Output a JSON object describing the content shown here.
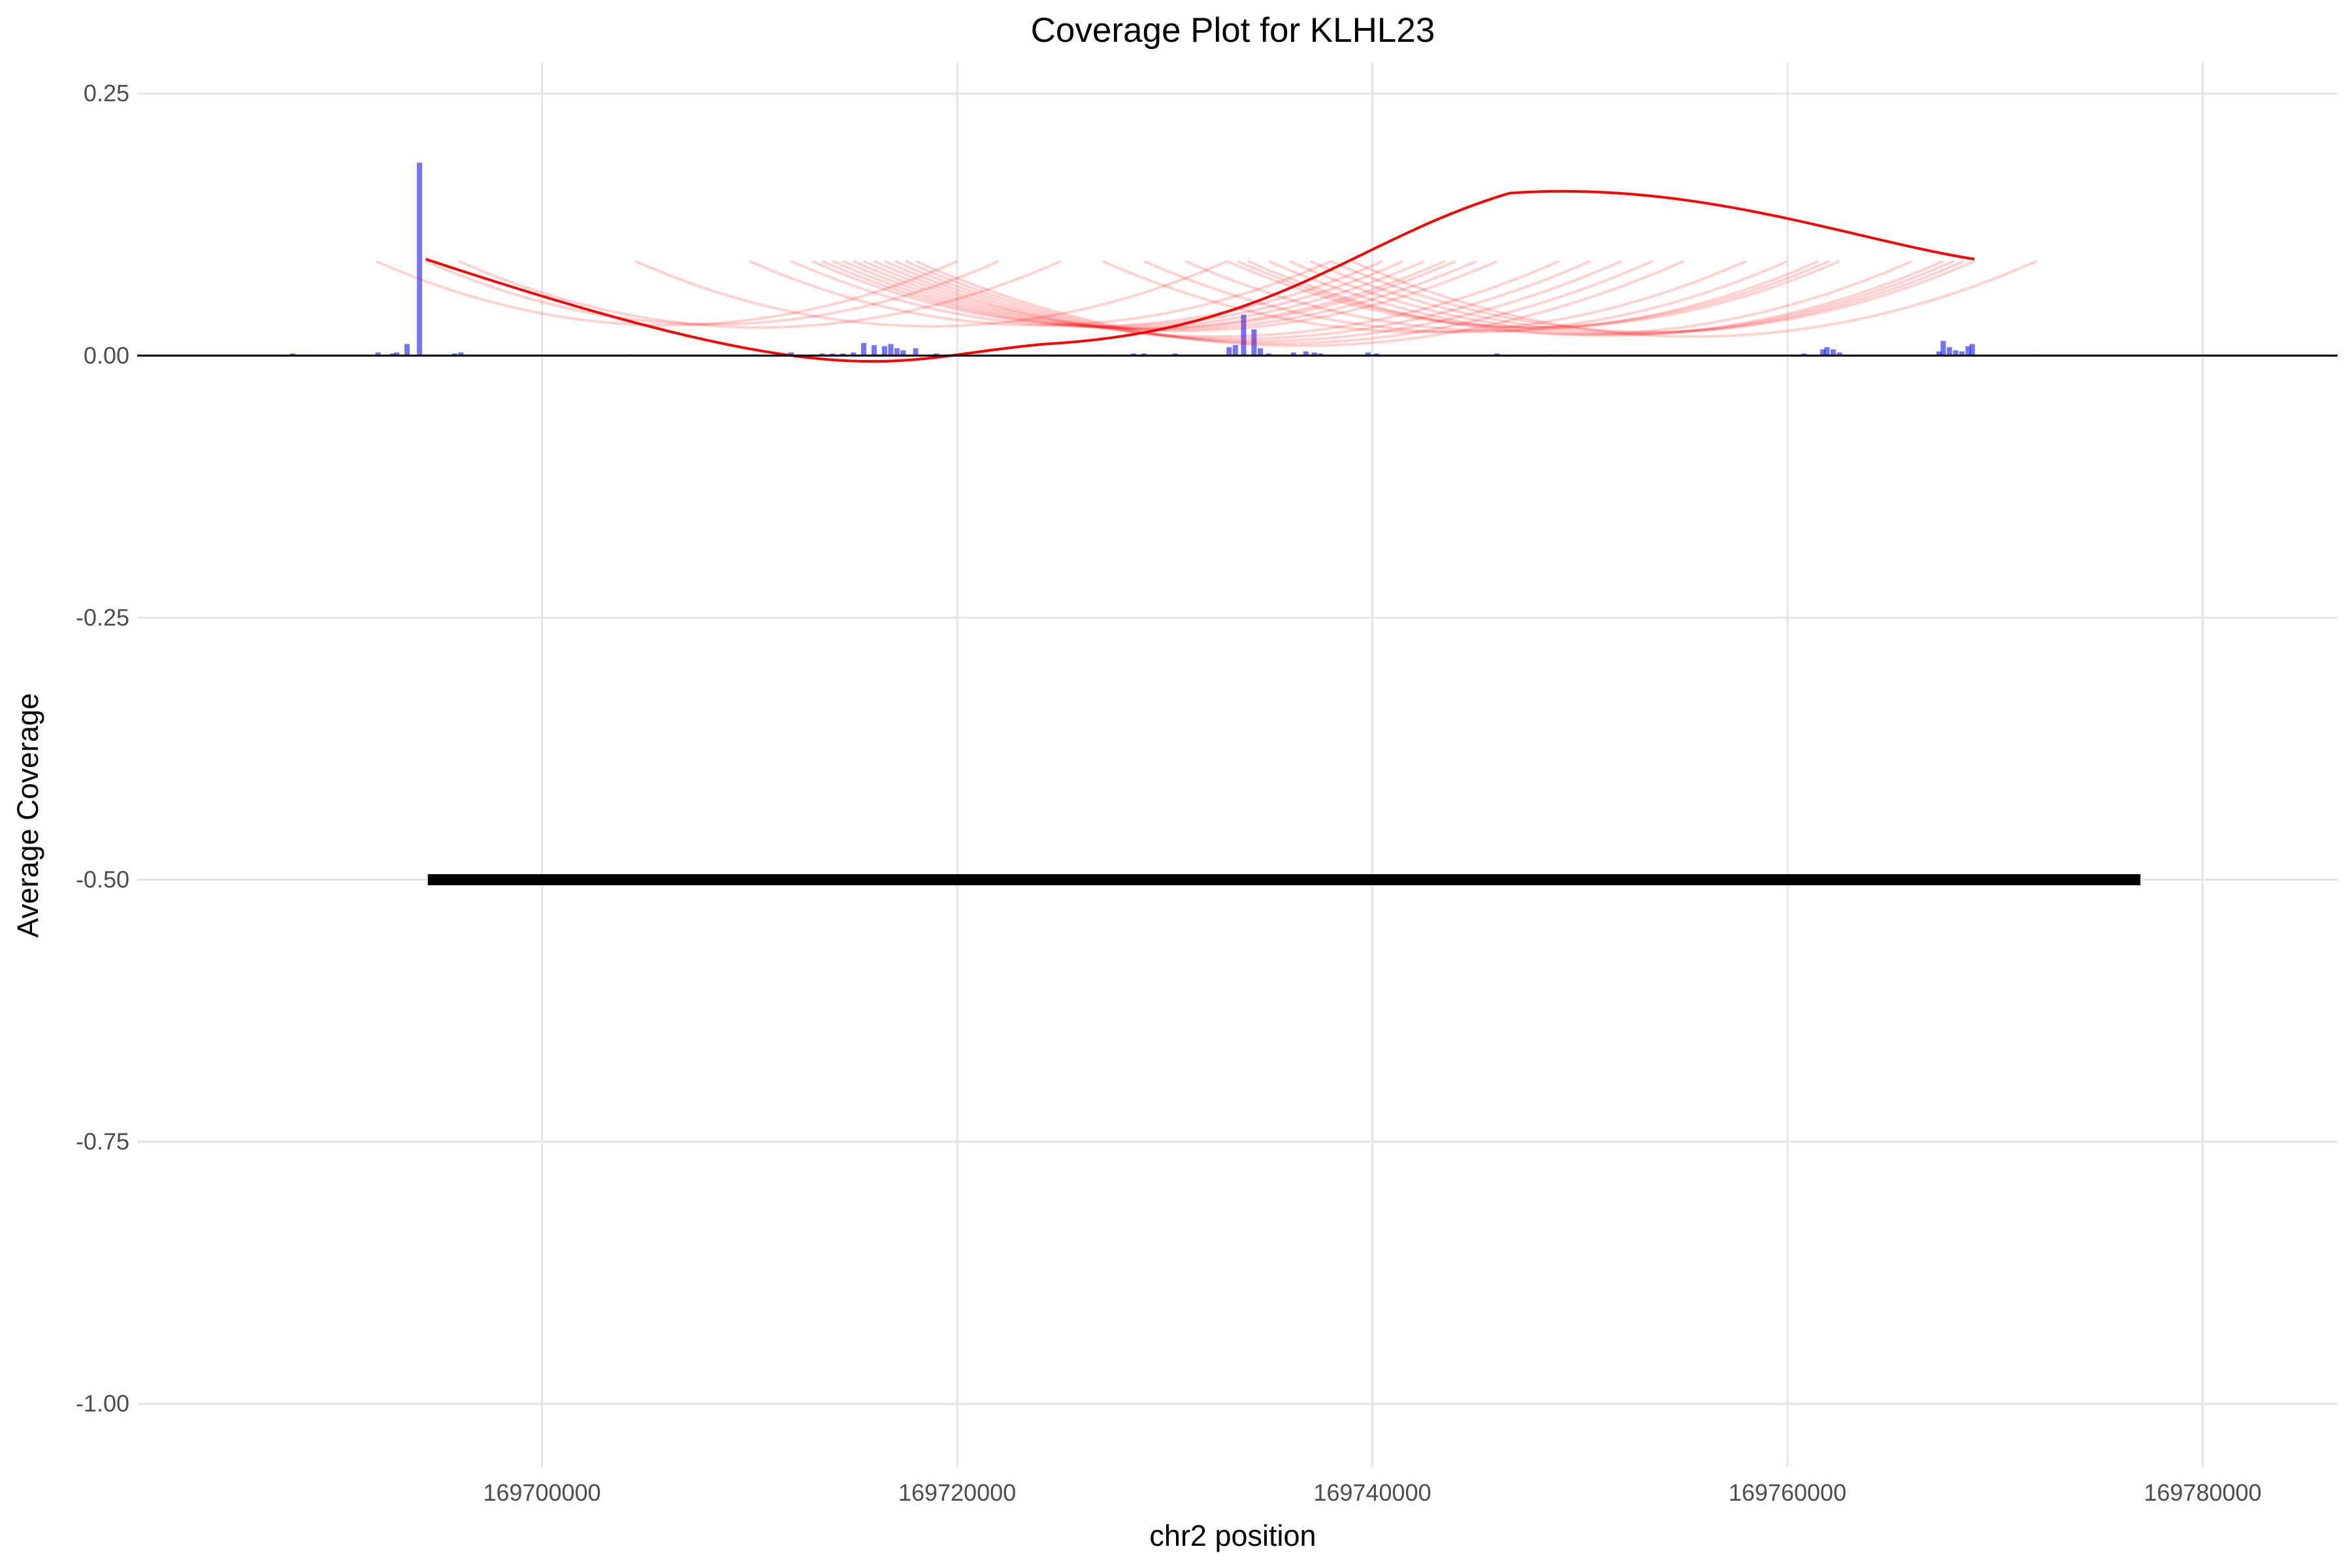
{
  "chart_data": {
    "type": "bar",
    "title": "Coverage Plot for KLHL23",
    "xlabel": "chr2 position",
    "ylabel": "Average Coverage",
    "xlim": [
      169680500,
      169786500
    ],
    "ylim": [
      -1.06,
      0.28
    ],
    "x_ticks": [
      169700000,
      169720000,
      169740000,
      169760000,
      169780000
    ],
    "x_tick_labels": [
      "169700000",
      "169720000",
      "169740000",
      "169760000",
      "169780000"
    ],
    "y_ticks": [
      0.25,
      0,
      -0.25,
      -0.5,
      -0.75,
      -1
    ],
    "y_tick_labels": [
      "0.25",
      "0.00",
      "-0.25",
      "-0.50",
      "-0.75",
      "-1.00"
    ],
    "grid": true,
    "legend": "none",
    "colors": {
      "coverage": "#0000ff",
      "junction": "#ff0000",
      "gene_model": "#000000",
      "baseline": "#000000",
      "grid": "#e5e5e5"
    },
    "series": [
      {
        "kind": "coverage_bars",
        "x": [
          169688000,
          169692100,
          169692800,
          169693000,
          169693500,
          169694100,
          169695800,
          169696100,
          169704200,
          169710200,
          169712000,
          169713000,
          169713500,
          169714000,
          169714500,
          169715000,
          169715500,
          169716000,
          169716500,
          169716800,
          169717100,
          169717400,
          169718000,
          169719000,
          169727000,
          169728500,
          169729000,
          169730500,
          169733100,
          169733400,
          169733800,
          169734300,
          169734600,
          169735000,
          169736200,
          169736800,
          169737200,
          169737500,
          169739800,
          169740200,
          169746000,
          169748500,
          169749000,
          169757500,
          169760800,
          169761700,
          169761900,
          169762200,
          169762500,
          169767300,
          169767500,
          169767800,
          169768100,
          169768400,
          169768700,
          169768900,
          169772000
        ],
        "y": [
          0.002,
          0.003,
          0.002,
          0.003,
          0.011,
          0.184,
          0.002,
          0.003,
          0.001,
          0.001,
          0.003,
          0.001,
          0.002,
          0.002,
          0.002,
          0.003,
          0.012,
          0.01,
          0.009,
          0.011,
          0.007,
          0.005,
          0.007,
          0.002,
          0.001,
          0.002,
          0.002,
          0.002,
          0.008,
          0.01,
          0.039,
          0.025,
          0.007,
          0.002,
          0.003,
          0.004,
          0.003,
          0.002,
          0.003,
          0.002,
          0.002,
          0.001,
          0.001,
          0.001,
          0.002,
          0.006,
          0.008,
          0.006,
          0.003,
          0.004,
          0.014,
          0.008,
          0.005,
          0.004,
          0.009,
          0.011,
          0.001
        ]
      },
      {
        "kind": "junction_arcs_faint",
        "arcs": [
          [
            169692000,
            169720000,
            0.09
          ],
          [
            169694400,
            169722000,
            0.09
          ],
          [
            169696000,
            169725000,
            0.09
          ],
          [
            169704500,
            169733000,
            0.09
          ],
          [
            169710000,
            169738000,
            0.09
          ],
          [
            169712000,
            169740500,
            0.09
          ],
          [
            169713000,
            169741500,
            0.09
          ],
          [
            169713500,
            169742500,
            0.09
          ],
          [
            169714000,
            169743500,
            0.09
          ],
          [
            169714500,
            169744000,
            0.09
          ],
          [
            169715000,
            169745000,
            0.09
          ],
          [
            169715500,
            169746000,
            0.09
          ],
          [
            169716000,
            169749000,
            0.09
          ],
          [
            169716500,
            169750500,
            0.09
          ],
          [
            169717000,
            169752000,
            0.09
          ],
          [
            169717500,
            169753500,
            0.09
          ],
          [
            169718000,
            169755000,
            0.09
          ],
          [
            169727000,
            169758000,
            0.09
          ],
          [
            169729000,
            169760000,
            0.09
          ],
          [
            169731000,
            169761500,
            0.09
          ],
          [
            169733000,
            169762000,
            0.09
          ],
          [
            169733500,
            169762500,
            0.09
          ],
          [
            169734000,
            169766000,
            0.09
          ],
          [
            169735000,
            169767500,
            0.09
          ],
          [
            169736000,
            169768000,
            0.09
          ],
          [
            169737000,
            169768500,
            0.09
          ],
          [
            169738000,
            169769000,
            0.09
          ],
          [
            169739000,
            169772000,
            0.09
          ]
        ]
      },
      {
        "kind": "junction_arc_main",
        "x": [
          169694400,
          169769000
        ],
        "y": [
          0.092,
          0.092
        ],
        "min": 0.011,
        "max": 0.155
      },
      {
        "kind": "gene_model",
        "x": [
          169694500,
          169777000
        ],
        "y": -0.5
      }
    ]
  }
}
